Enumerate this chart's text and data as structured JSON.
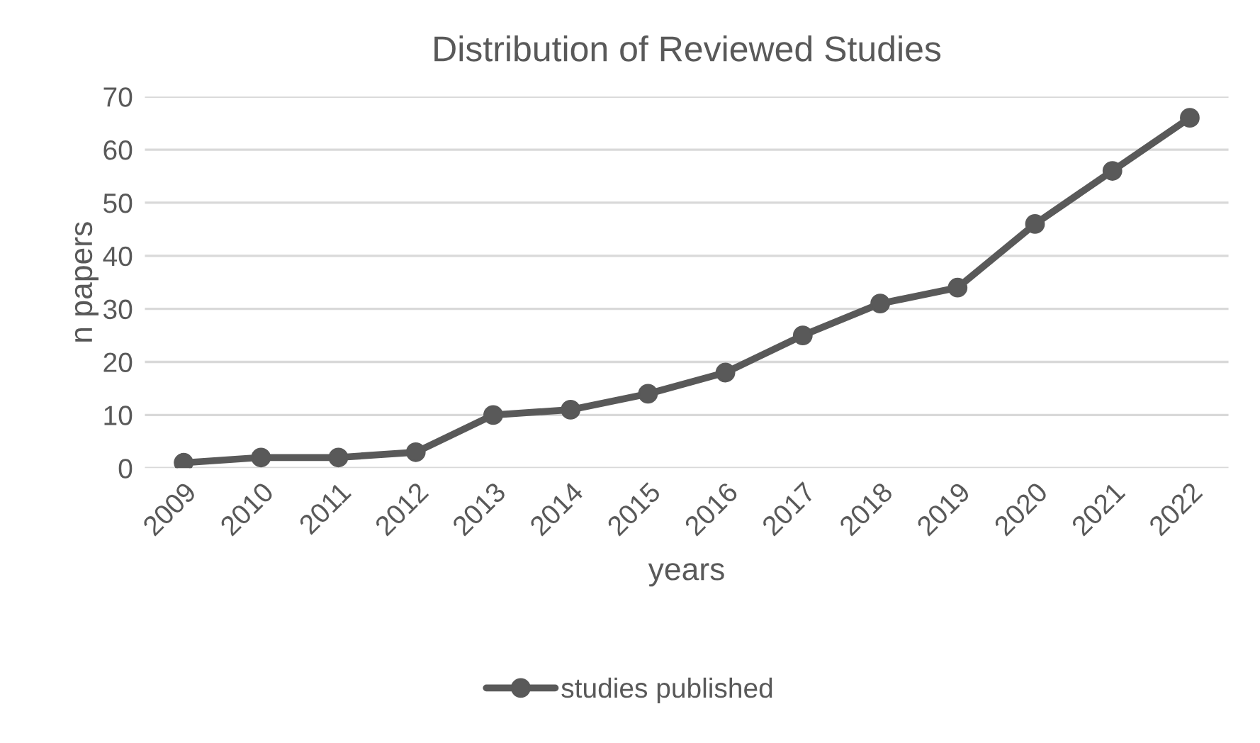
{
  "chart_data": {
    "type": "line",
    "title": "Distribution of Reviewed Studies",
    "xlabel": "years",
    "ylabel": "n papers",
    "categories": [
      "2009",
      "2010",
      "2011",
      "2012",
      "2013",
      "2014",
      "2015",
      "2016",
      "2017",
      "2018",
      "2019",
      "2020",
      "2021",
      "2022"
    ],
    "series": [
      {
        "name": "studies published",
        "color": "#595959",
        "values": [
          1,
          2,
          2,
          3,
          10,
          11,
          14,
          18,
          25,
          31,
          34,
          46,
          56,
          66
        ]
      }
    ],
    "ylim": [
      0,
      70
    ],
    "yticks": [
      0,
      10,
      20,
      30,
      40,
      50,
      60,
      70
    ],
    "grid": "y",
    "legend": "bottom",
    "marker": "circle",
    "line_style": "solid"
  }
}
